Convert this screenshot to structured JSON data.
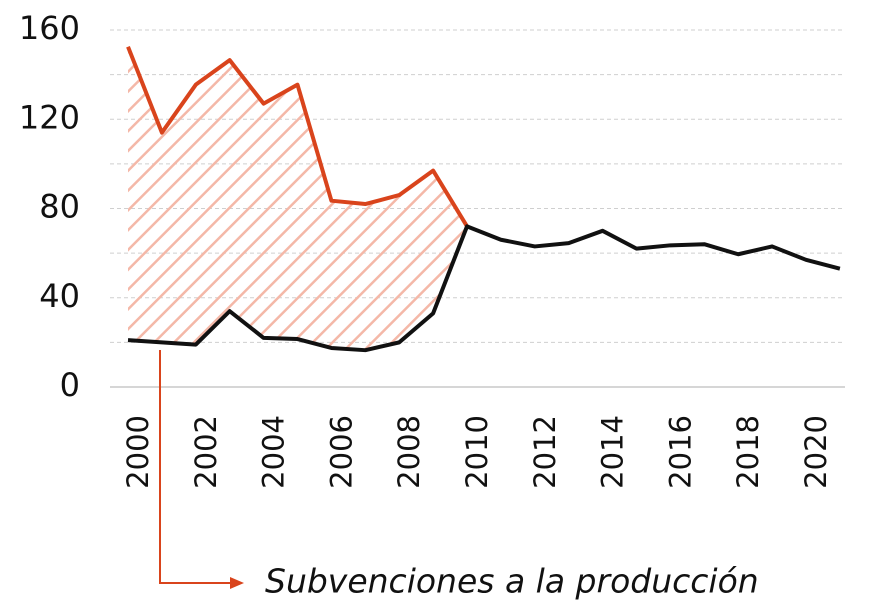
{
  "chart_data": {
    "type": "line",
    "categories": [
      "2000",
      null,
      "2002",
      null,
      "2004",
      null,
      "2006",
      null,
      "2008",
      null,
      "2010",
      null,
      "2012",
      null,
      "2014",
      null,
      "2016",
      null,
      "2018",
      null,
      "2020",
      null
    ],
    "series": [
      {
        "color": "#d9441c",
        "values": [
          152.5,
          114,
          135.5,
          146.5,
          127,
          135.5,
          83.5,
          82,
          86,
          97,
          72,
          null,
          null,
          null,
          null,
          null,
          null,
          null,
          null,
          null,
          null,
          null
        ]
      },
      {
        "color": "#111111",
        "values": [
          21,
          20,
          19,
          34,
          22,
          21.5,
          17.5,
          16.5,
          20,
          33,
          72,
          66,
          63,
          64.5,
          70,
          62,
          63.5,
          64,
          59.5,
          63,
          57,
          53
        ]
      }
    ],
    "fill_between": {
      "color": "#f4b8a8"
    },
    "ylim": [
      0,
      160
    ],
    "yticks": [
      0,
      40,
      80,
      120,
      160
    ],
    "minor_yticks": [
      20,
      60,
      100,
      140
    ],
    "grid": true,
    "annotation": "Subvenciones a la producción"
  }
}
